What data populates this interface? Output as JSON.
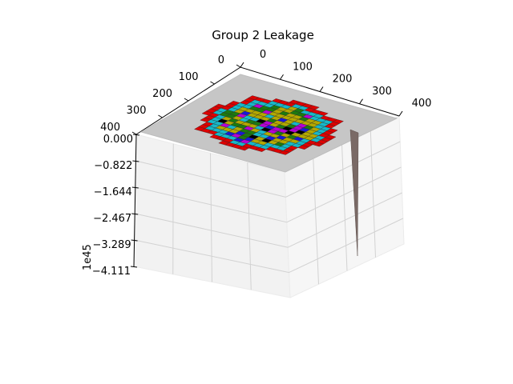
{
  "chart_data": {
    "type": "surface3d",
    "title": "Group 2 Leakage",
    "x_ticks": [
      "0",
      "100",
      "200",
      "300",
      "400"
    ],
    "y_ticks": [
      "0",
      "100",
      "200",
      "300",
      "400"
    ],
    "z_ticks": [
      "0.000",
      "−0.822",
      "−1.644",
      "−2.467",
      "−3.289",
      "−4.111"
    ],
    "z_offset": "1e45",
    "zlim": [
      -4.111,
      0.0
    ],
    "grid": true,
    "grid_cells": 24,
    "colors": {
      "red": "#dd0000",
      "cyan": "#17b8c8",
      "olive": "#b3a800",
      "green": "#1c7a0f",
      "magenta": "#b400d4",
      "blue": "#1818d8",
      "black": "#000000",
      "plate": "#c6c6c6",
      "spike": "#7a6a66"
    }
  }
}
